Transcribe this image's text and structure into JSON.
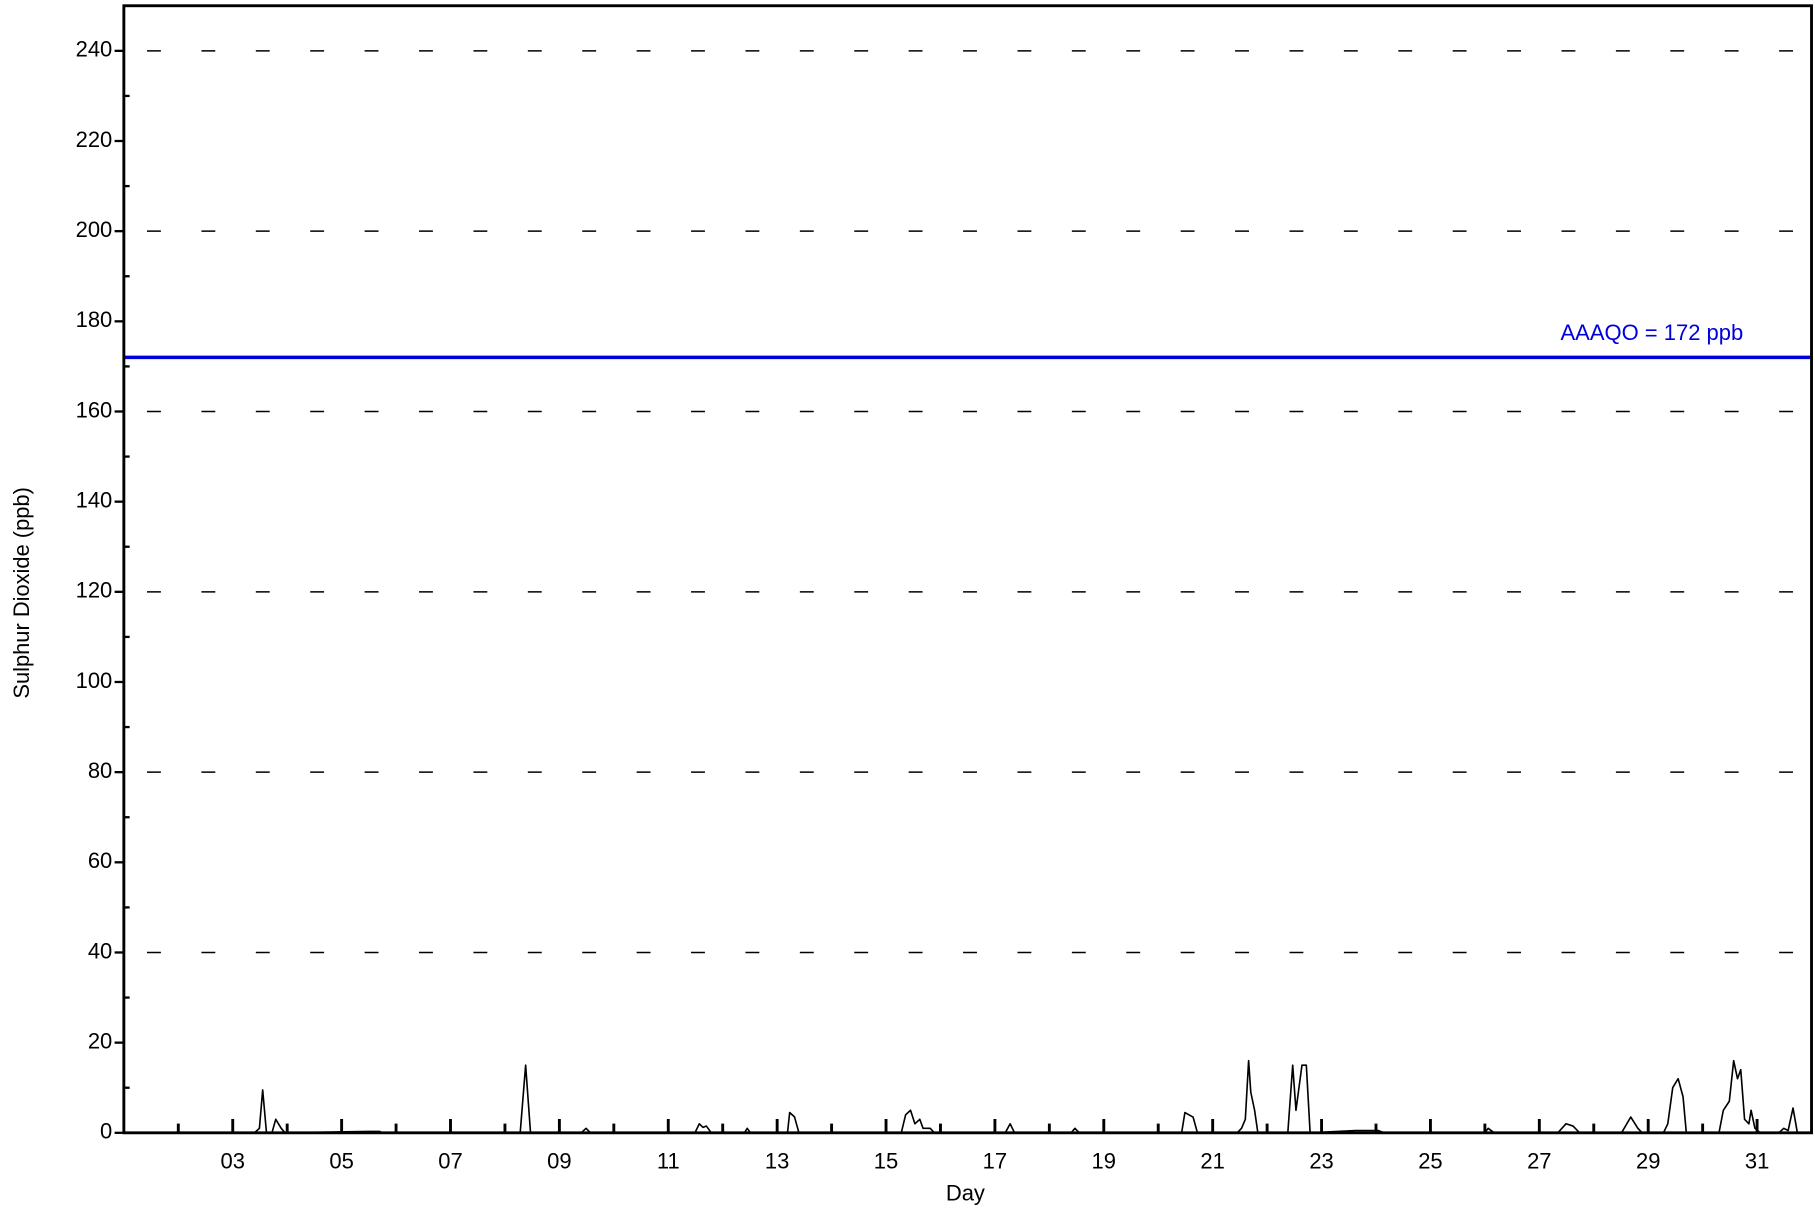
{
  "chart_data": {
    "type": "line",
    "x_label": "Day",
    "y_label": "Sulphur Dioxide (ppb)",
    "xlim": [
      1,
      32
    ],
    "ylim": [
      0,
      250
    ],
    "xticks": [
      {
        "value": 3,
        "label": "03"
      },
      {
        "value": 5,
        "label": "05"
      },
      {
        "value": 7,
        "label": "07"
      },
      {
        "value": 9,
        "label": "09"
      },
      11,
      13,
      15,
      17,
      19,
      21,
      23,
      25,
      27,
      29,
      31
    ],
    "yticks": [
      0,
      20,
      40,
      60,
      80,
      100,
      120,
      140,
      160,
      180,
      200,
      220,
      240
    ],
    "grid_yticks": [
      40,
      80,
      120,
      160,
      200,
      240
    ],
    "series": [
      {
        "name": "Sulphur Dioxide",
        "color": "#000000",
        "x": [
          1.0,
          3.4,
          3.49,
          3.55,
          3.62,
          3.72,
          3.79,
          3.89,
          3.96,
          5.49,
          5.7,
          5.74,
          8.28,
          8.38,
          8.47,
          9.4,
          9.49,
          9.57,
          11.49,
          11.57,
          11.64,
          11.7,
          11.79,
          12.4,
          12.45,
          12.51,
          13.19,
          13.23,
          13.32,
          13.4,
          15.28,
          15.36,
          15.45,
          15.53,
          15.62,
          15.68,
          15.81,
          15.89,
          17.19,
          17.28,
          17.36,
          18.4,
          18.47,
          18.55,
          20.43,
          20.49,
          20.64,
          20.72,
          21.45,
          21.53,
          21.6,
          21.66,
          21.7,
          21.77,
          21.83,
          22.38,
          22.47,
          22.53,
          22.64,
          22.72,
          22.79,
          23.62,
          24.04,
          24.15,
          26.0,
          26.06,
          26.17,
          27.34,
          27.49,
          27.62,
          27.74,
          28.51,
          28.68,
          28.81,
          28.89,
          29.28,
          29.36,
          29.45,
          29.55,
          29.64,
          29.7,
          30.3,
          30.38,
          30.49,
          30.57,
          30.64,
          30.7,
          30.77,
          30.85,
          30.89,
          30.96,
          31.06,
          31.4,
          31.49,
          31.57,
          31.66,
          31.74,
          32.0
        ],
        "values": [
          0,
          0,
          1,
          9.5,
          0,
          0,
          3,
          1,
          0,
          0.3,
          0.3,
          0,
          0,
          15,
          0,
          0,
          1,
          0,
          0,
          2,
          1.2,
          1.5,
          0,
          0,
          1,
          0,
          0,
          4.5,
          3.5,
          0,
          0,
          4,
          5,
          2,
          3,
          1,
          1,
          0,
          0,
          2,
          0,
          0,
          1,
          0,
          0,
          4.5,
          3.5,
          0,
          0,
          1,
          3,
          16,
          9,
          5,
          0,
          0,
          15,
          5,
          15,
          15,
          0,
          0.5,
          0.5,
          0,
          0,
          1,
          0,
          0,
          2,
          1.5,
          0,
          0,
          3.5,
          1,
          0,
          0,
          2,
          10,
          12,
          8,
          0,
          0,
          5,
          7,
          16,
          12,
          14,
          3,
          2,
          5,
          1,
          0,
          0,
          1,
          0.5,
          5.5,
          0,
          0
        ]
      }
    ],
    "reference_line": {
      "value": 172,
      "color": "#0000dd",
      "label": "AAAQO = 172 ppb"
    }
  }
}
